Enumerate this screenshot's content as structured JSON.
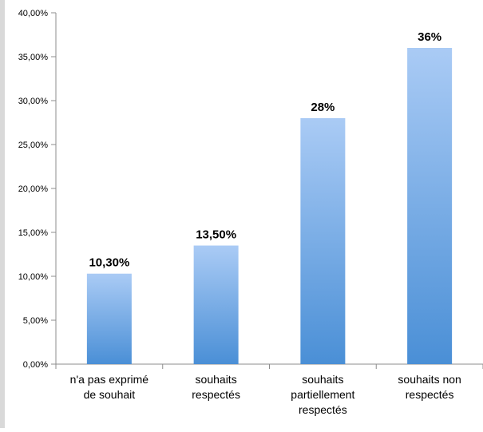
{
  "chart_data": {
    "type": "bar",
    "title": "",
    "xlabel": "",
    "ylabel": "",
    "categories": [
      [
        "n'a pas exprimé",
        "de souhait"
      ],
      [
        "souhaits",
        "respectés"
      ],
      [
        "souhaits",
        "partiellement",
        "respectés"
      ],
      [
        "souhaits non",
        "respectés"
      ]
    ],
    "values": [
      10.3,
      13.5,
      28,
      36
    ],
    "data_labels": [
      "10,30%",
      "13,50%",
      "28%",
      "36%"
    ],
    "ylim": [
      0,
      40
    ],
    "y_ticks": [
      0,
      5,
      10,
      15,
      20,
      25,
      30,
      35,
      40
    ],
    "y_tick_labels": [
      "0,00%",
      "5,00%",
      "10,00%",
      "15,00%",
      "20,00%",
      "25,00%",
      "30,00%",
      "35,00%",
      "40,00%"
    ],
    "grid": false,
    "legend": "none",
    "colors": {
      "bar_top": "#aacbf5",
      "bar_bottom": "#4a8fd6",
      "axis": "#8c8c8c"
    }
  }
}
